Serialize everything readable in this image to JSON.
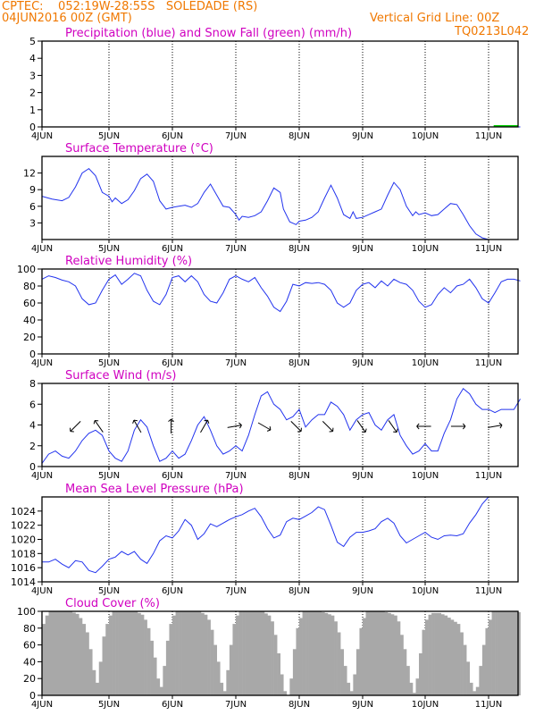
{
  "header": {
    "line1": "CPTEC:    052:19W-28:55S   SOLEDADE (RS)",
    "line2": "04JUN2016 00Z (GMT)",
    "grid_note": "Vertical Grid Line: 00Z",
    "product_id": "TQ0213L042"
  },
  "colors": {
    "header": "#f07800",
    "title": "#d000c0",
    "line": "#2233ee",
    "snow": "#00cc00",
    "cloud": "#a8a8a8",
    "arrow": "#000000"
  },
  "chart_data": [
    {
      "id": "precip",
      "type": "line",
      "title": "Precipitation (blue) and Snow Fall (green) (mm/h)",
      "x_labels": [
        "4JUN",
        "5JUN",
        "6JUN",
        "7JUN",
        "8JUN",
        "9JUN",
        "10JUN",
        "11JUN"
      ],
      "x_unit": "days since 4JUN 00Z",
      "xlim": [
        0,
        7.5
      ],
      "ylim": [
        0,
        5
      ],
      "yticks": [
        0,
        1,
        2,
        3,
        4,
        5
      ],
      "series": [
        {
          "name": "Precipitation",
          "color": "#2233ee",
          "x": [
            0,
            7.5
          ],
          "values": [
            0,
            0
          ]
        },
        {
          "name": "Snow Fall",
          "color": "#00cc00",
          "x": [
            7.08,
            7.16,
            7.24,
            7.32,
            7.4,
            7.46
          ],
          "values": [
            0.05,
            0.05,
            0.05,
            0.05,
            0.05,
            0.05
          ]
        }
      ]
    },
    {
      "id": "temp",
      "type": "line",
      "title": "Surface Temperature (°C)",
      "x_labels": [
        "4JUN",
        "5JUN",
        "6JUN",
        "7JUN",
        "8JUN",
        "9JUN",
        "10JUN",
        "11JUN"
      ],
      "xlim": [
        0,
        7.5
      ],
      "ylim": [
        0,
        15
      ],
      "yticks": [
        3,
        6,
        9,
        12
      ],
      "series": [
        {
          "name": "Temperature",
          "color": "#2233ee",
          "x": [
            0,
            0.15,
            0.3,
            0.4,
            0.5,
            0.6,
            0.7,
            0.8,
            0.9,
            1.0,
            1.05,
            1.1,
            1.2,
            1.3,
            1.4,
            1.5,
            1.6,
            1.7,
            1.8,
            1.9,
            2.0,
            2.1,
            2.2,
            2.3,
            2.4,
            2.5,
            2.6,
            2.7,
            2.8,
            2.9,
            3.0,
            3.05,
            3.1,
            3.2,
            3.3,
            3.4,
            3.5,
            3.6,
            3.7,
            3.75,
            3.85,
            3.95,
            4.0,
            4.1,
            4.2,
            4.3,
            4.4,
            4.5,
            4.6,
            4.7,
            4.8,
            4.85,
            4.9,
            5.0,
            5.1,
            5.2,
            5.3,
            5.4,
            5.5,
            5.6,
            5.7,
            5.8,
            5.85,
            5.9,
            6.0,
            6.1,
            6.2,
            6.3,
            6.4,
            6.5,
            6.6,
            6.7,
            6.8,
            6.9,
            7.0
          ],
          "values": [
            7.8,
            7.3,
            7.0,
            7.6,
            9.5,
            12.0,
            12.8,
            11.5,
            8.5,
            7.8,
            6.8,
            7.5,
            6.5,
            7.2,
            8.8,
            11.0,
            11.8,
            10.5,
            7.0,
            5.5,
            5.8,
            6.0,
            6.2,
            5.8,
            6.5,
            8.5,
            10.0,
            8.0,
            6.0,
            5.8,
            4.5,
            3.5,
            4.2,
            4.0,
            4.3,
            5.0,
            7.0,
            9.3,
            8.5,
            5.5,
            3.2,
            2.7,
            3.3,
            3.5,
            4.0,
            5.0,
            7.5,
            9.8,
            7.5,
            4.5,
            3.8,
            5.0,
            3.8,
            4.0,
            4.5,
            5.0,
            5.5,
            8.0,
            10.3,
            9.0,
            6.0,
            4.3,
            5.0,
            4.5,
            4.8,
            4.3,
            4.5,
            5.5,
            6.5,
            6.3,
            4.5,
            2.5,
            1.0,
            0.3,
            0.0
          ]
        }
      ]
    },
    {
      "id": "rh",
      "type": "line",
      "title": "Relative Humidity (%)",
      "x_labels": [
        "4JUN",
        "5JUN",
        "6JUN",
        "7JUN",
        "8JUN",
        "9JUN",
        "10JUN",
        "11JUN"
      ],
      "xlim": [
        0,
        7.5
      ],
      "ylim": [
        0,
        100
      ],
      "yticks": [
        0,
        20,
        40,
        60,
        80,
        100
      ],
      "series": [
        {
          "name": "Relative Humidity",
          "color": "#2233ee",
          "x": [
            0,
            0.1,
            0.2,
            0.3,
            0.4,
            0.5,
            0.6,
            0.7,
            0.8,
            0.9,
            1.0,
            1.1,
            1.2,
            1.3,
            1.4,
            1.5,
            1.6,
            1.7,
            1.8,
            1.9,
            2.0,
            2.1,
            2.2,
            2.3,
            2.4,
            2.5,
            2.6,
            2.7,
            2.8,
            2.9,
            3.0,
            3.1,
            3.2,
            3.3,
            3.4,
            3.5,
            3.6,
            3.7,
            3.8,
            3.9,
            4.0,
            4.1,
            4.2,
            4.3,
            4.4,
            4.5,
            4.6,
            4.7,
            4.8,
            4.9,
            5.0,
            5.1,
            5.2,
            5.3,
            5.4,
            5.5,
            5.6,
            5.7,
            5.8,
            5.9,
            6.0,
            6.1,
            6.2,
            6.3,
            6.4,
            6.5,
            6.6,
            6.7,
            6.8,
            6.9,
            7.0,
            7.1,
            7.2,
            7.3,
            7.4,
            7.5
          ],
          "values": [
            88,
            92,
            90,
            87,
            85,
            80,
            65,
            58,
            60,
            75,
            88,
            93,
            82,
            88,
            95,
            92,
            75,
            62,
            58,
            70,
            90,
            92,
            85,
            92,
            85,
            70,
            62,
            60,
            72,
            88,
            92,
            88,
            85,
            90,
            78,
            68,
            55,
            50,
            62,
            82,
            80,
            84,
            83,
            84,
            82,
            75,
            60,
            55,
            60,
            75,
            82,
            84,
            78,
            86,
            80,
            88,
            84,
            82,
            75,
            62,
            55,
            58,
            70,
            78,
            72,
            80,
            82,
            88,
            78,
            65,
            60,
            72,
            85,
            88,
            88,
            86
          ]
        }
      ]
    },
    {
      "id": "wind",
      "type": "line",
      "title": "Surface Wind (m/s)",
      "x_labels": [
        "4JUN",
        "5JUN",
        "6JUN",
        "7JUN",
        "8JUN",
        "9JUN",
        "10JUN",
        "11JUN"
      ],
      "xlim": [
        0,
        7.5
      ],
      "ylim": [
        0,
        8
      ],
      "yticks": [
        0,
        2,
        4,
        6,
        8
      ],
      "series": [
        {
          "name": "Wind speed",
          "color": "#2233ee",
          "x": [
            0,
            0.1,
            0.2,
            0.3,
            0.4,
            0.5,
            0.6,
            0.7,
            0.8,
            0.9,
            1.0,
            1.1,
            1.2,
            1.3,
            1.4,
            1.5,
            1.6,
            1.7,
            1.8,
            1.9,
            2.0,
            2.1,
            2.2,
            2.3,
            2.4,
            2.5,
            2.6,
            2.7,
            2.8,
            2.9,
            3.0,
            3.1,
            3.2,
            3.3,
            3.4,
            3.5,
            3.6,
            3.7,
            3.8,
            3.9,
            4.0,
            4.1,
            4.2,
            4.3,
            4.4,
            4.5,
            4.6,
            4.7,
            4.8,
            4.9,
            5.0,
            5.1,
            5.2,
            5.3,
            5.4,
            5.5,
            5.6,
            5.7,
            5.8,
            5.9,
            6.0,
            6.1,
            6.2,
            6.3,
            6.4,
            6.5,
            6.6,
            6.7,
            6.8,
            6.9,
            7.0,
            7.1,
            7.2,
            7.3,
            7.4,
            7.5
          ],
          "values": [
            0.3,
            1.2,
            1.5,
            1.0,
            0.8,
            1.5,
            2.5,
            3.2,
            3.5,
            3.0,
            1.5,
            0.8,
            0.5,
            1.5,
            3.5,
            4.5,
            3.8,
            2.0,
            0.5,
            0.8,
            1.5,
            0.8,
            1.2,
            2.5,
            4.0,
            4.8,
            3.5,
            2.0,
            1.2,
            1.5,
            2.0,
            1.5,
            3.0,
            5.0,
            6.8,
            7.2,
            6.0,
            5.5,
            4.5,
            4.8,
            5.5,
            3.8,
            4.5,
            5.0,
            5.0,
            6.2,
            5.8,
            5.0,
            3.5,
            4.5,
            5.0,
            5.2,
            4.0,
            3.5,
            4.5,
            5.0,
            3.0,
            2.0,
            1.2,
            1.5,
            2.2,
            1.5,
            1.5,
            3.2,
            4.5,
            6.5,
            7.5,
            7.0,
            6.0,
            5.5,
            5.5,
            5.2,
            5.5,
            5.5,
            5.5,
            6.5
          ]
        }
      ],
      "wind_arrows": [
        {
          "x": 0.5,
          "dir_deg": 225
        },
        {
          "x": 0.85,
          "dir_deg": 325
        },
        {
          "x": 1.45,
          "dir_deg": 330
        },
        {
          "x": 1.98,
          "dir_deg": 0
        },
        {
          "x": 2.5,
          "dir_deg": 30
        },
        {
          "x": 2.98,
          "dir_deg": 80
        },
        {
          "x": 3.45,
          "dir_deg": 120
        },
        {
          "x": 3.95,
          "dir_deg": 135
        },
        {
          "x": 4.45,
          "dir_deg": 135
        },
        {
          "x": 4.98,
          "dir_deg": 145
        },
        {
          "x": 5.48,
          "dir_deg": 145
        },
        {
          "x": 5.98,
          "dir_deg": 270
        },
        {
          "x": 6.52,
          "dir_deg": 90
        },
        {
          "x": 7.1,
          "dir_deg": 80
        }
      ]
    },
    {
      "id": "mslp",
      "type": "line",
      "title": "Mean Sea Level Pressure (hPa)",
      "x_labels": [
        "4JUN",
        "5JUN",
        "6JUN",
        "7JUN",
        "8JUN",
        "9JUN",
        "10JUN",
        "11JUN"
      ],
      "xlim": [
        0,
        7.5
      ],
      "ylim": [
        1014,
        1026
      ],
      "yticks": [
        1014,
        1016,
        1018,
        1020,
        1022,
        1024
      ],
      "series": [
        {
          "name": "MSLP",
          "color": "#2233ee",
          "x": [
            0,
            0.1,
            0.2,
            0.3,
            0.4,
            0.5,
            0.6,
            0.7,
            0.8,
            0.9,
            1.0,
            1.1,
            1.2,
            1.3,
            1.4,
            1.5,
            1.6,
            1.7,
            1.8,
            1.9,
            2.0,
            2.1,
            2.2,
            2.3,
            2.4,
            2.5,
            2.6,
            2.7,
            2.8,
            2.9,
            3.0,
            3.1,
            3.2,
            3.3,
            3.4,
            3.5,
            3.6,
            3.7,
            3.8,
            3.9,
            4.0,
            4.1,
            4.2,
            4.3,
            4.4,
            4.5,
            4.6,
            4.7,
            4.8,
            4.9,
            5.0,
            5.1,
            5.2,
            5.3,
            5.4,
            5.5,
            5.6,
            5.7,
            5.8,
            5.9,
            6.0,
            6.1,
            6.2,
            6.3,
            6.4,
            6.5,
            6.6,
            6.7,
            6.8,
            6.9,
            7.0,
            7.1,
            7.2
          ],
          "values": [
            1016.8,
            1016.8,
            1017.2,
            1016.5,
            1016.0,
            1017.0,
            1016.8,
            1015.6,
            1015.3,
            1016.2,
            1017.2,
            1017.5,
            1018.3,
            1017.8,
            1018.3,
            1017.2,
            1016.6,
            1018.0,
            1019.8,
            1020.5,
            1020.2,
            1021.2,
            1022.8,
            1022.0,
            1020.0,
            1020.8,
            1022.2,
            1021.8,
            1022.3,
            1022.8,
            1023.2,
            1023.5,
            1024.0,
            1024.4,
            1023.2,
            1021.5,
            1020.2,
            1020.6,
            1022.5,
            1023.0,
            1022.8,
            1023.3,
            1023.8,
            1024.6,
            1024.2,
            1022.0,
            1019.6,
            1019.0,
            1020.3,
            1021.0,
            1021.0,
            1021.2,
            1021.5,
            1022.5,
            1023.0,
            1022.3,
            1020.5,
            1019.5,
            1020.0,
            1020.5,
            1021.0,
            1020.3,
            1020.0,
            1020.5,
            1020.6,
            1020.5,
            1020.8,
            1022.3,
            1023.5,
            1025.0,
            1026.0,
            1026.2,
            1026.0
          ]
        }
      ]
    },
    {
      "id": "cloud",
      "type": "area",
      "title": "Cloud Cover (%)",
      "x_labels": [
        "4JUN",
        "5JUN",
        "6JUN",
        "7JUN",
        "8JUN",
        "9JUN",
        "10JUN",
        "11JUN"
      ],
      "xlim": [
        0,
        7.5
      ],
      "ylim": [
        0,
        100
      ],
      "yticks": [
        0,
        20,
        40,
        60,
        80,
        100
      ],
      "series": [
        {
          "name": "Cloud Cover",
          "color": "#a8a8a8",
          "x": [
            0,
            0.05,
            0.1,
            0.2,
            0.3,
            0.4,
            0.5,
            0.55,
            0.6,
            0.65,
            0.7,
            0.75,
            0.8,
            0.85,
            0.9,
            0.95,
            1.0,
            1.05,
            1.1,
            1.2,
            1.3,
            1.4,
            1.5,
            1.55,
            1.6,
            1.65,
            1.7,
            1.75,
            1.8,
            1.85,
            1.9,
            1.95,
            2.0,
            2.05,
            2.1,
            2.2,
            2.3,
            2.4,
            2.5,
            2.55,
            2.6,
            2.65,
            2.7,
            2.75,
            2.8,
            2.85,
            2.9,
            2.95,
            3.0,
            3.05,
            3.1,
            3.2,
            3.3,
            3.4,
            3.5,
            3.55,
            3.6,
            3.65,
            3.7,
            3.75,
            3.8,
            3.85,
            3.9,
            3.95,
            4.0,
            4.05,
            4.1,
            4.2,
            4.3,
            4.4,
            4.5,
            4.55,
            4.6,
            4.65,
            4.7,
            4.75,
            4.8,
            4.85,
            4.9,
            4.95,
            5.0,
            5.05,
            5.1,
            5.2,
            5.3,
            5.4,
            5.5,
            5.55,
            5.6,
            5.65,
            5.7,
            5.75,
            5.8,
            5.85,
            5.9,
            5.95,
            6.0,
            6.05,
            6.1,
            6.2,
            6.3,
            6.4,
            6.5,
            6.55,
            6.6,
            6.65,
            6.7,
            6.75,
            6.8,
            6.85,
            6.9,
            6.95,
            7.0,
            7.05,
            7.1,
            7.2,
            7.3,
            7.4,
            7.5
          ],
          "values": [
            85,
            95,
            100,
            100,
            100,
            100,
            97,
            92,
            85,
            75,
            55,
            30,
            15,
            40,
            70,
            85,
            95,
            100,
            100,
            100,
            100,
            100,
            96,
            90,
            80,
            65,
            45,
            20,
            10,
            35,
            65,
            85,
            95,
            100,
            100,
            100,
            100,
            100,
            96,
            90,
            78,
            60,
            40,
            15,
            5,
            30,
            60,
            85,
            95,
            100,
            100,
            100,
            100,
            100,
            95,
            88,
            72,
            50,
            25,
            5,
            0,
            20,
            55,
            80,
            92,
            100,
            100,
            100,
            100,
            98,
            95,
            88,
            75,
            55,
            35,
            15,
            5,
            25,
            55,
            80,
            92,
            100,
            100,
            100,
            100,
            98,
            95,
            88,
            72,
            55,
            35,
            15,
            3,
            20,
            50,
            78,
            90,
            96,
            98,
            98,
            95,
            90,
            85,
            75,
            60,
            40,
            15,
            5,
            10,
            35,
            60,
            80,
            90,
            100,
            100,
            100,
            100,
            100,
            98
          ]
        }
      ]
    }
  ]
}
